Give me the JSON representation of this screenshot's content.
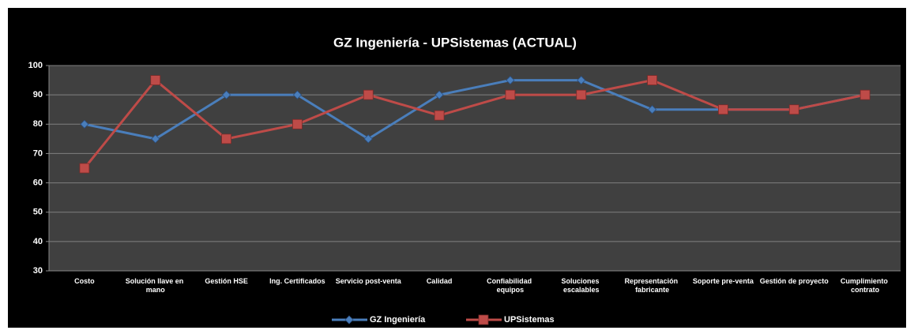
{
  "chart_data": {
    "type": "line",
    "title": "GZ Ingeniería - UPSistemas (ACTUAL)",
    "categories": [
      "Costo",
      "Solución llave en mano",
      "Gestión HSE",
      "Ing. Certificados",
      "Servicio post-venta",
      "Calidad",
      "Confiabilidad equipos",
      "Soluciones escalables",
      "Representación fabricante",
      "Soporte pre-venta",
      "Gestión de proyecto",
      "Cumplimiento contrato"
    ],
    "series": [
      {
        "name": "GZ Ingeniería",
        "color": "#4a7ebb",
        "marker": "diamond",
        "values": [
          80,
          75,
          90,
          90,
          75,
          90,
          95,
          95,
          85,
          85,
          85,
          90
        ]
      },
      {
        "name": "UPSistemas",
        "color": "#be4b48",
        "marker": "square",
        "values": [
          65,
          95,
          75,
          80,
          90,
          83,
          90,
          90,
          95,
          85,
          85,
          90
        ]
      }
    ],
    "ylim": [
      30,
      100
    ],
    "yticks": [
      30,
      40,
      50,
      60,
      70,
      80,
      90,
      100
    ],
    "grid": true,
    "legend": "bottom"
  }
}
